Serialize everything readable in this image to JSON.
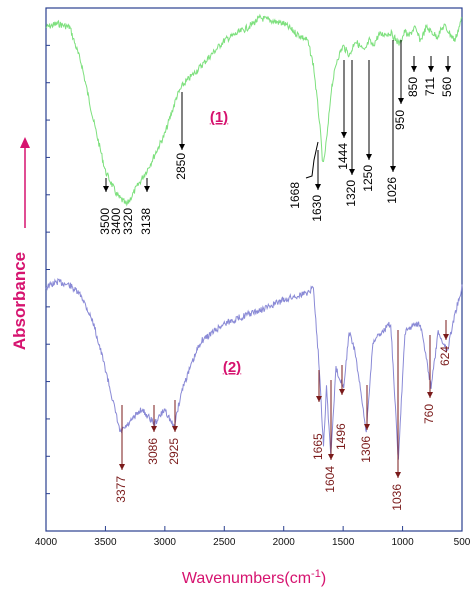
{
  "colors": {
    "spectrum_1": "#7ee07e",
    "spectrum_2": "#8a8ad6",
    "label_1": "#000000",
    "label_2": "#7a1a1a",
    "accent": "#d6136f",
    "frame": "#2a3f8f"
  },
  "chart_data": {
    "type": "line",
    "xlabel": "Wavenumbers(cm",
    "xlabel_sup": "-1",
    "xlabel_close": ")",
    "ylabel": "Absorbance",
    "xlim": [
      4000,
      500
    ],
    "x_reversed": true,
    "x_ticks": [
      "4000",
      "3500",
      "3000",
      "2500",
      "2000",
      "1500",
      "1000",
      "500"
    ],
    "grid": false,
    "series": [
      {
        "name": "(1)",
        "profile": [
          [
            4000,
            0.05
          ],
          [
            3900,
            0.03
          ],
          [
            3800,
            0.05
          ],
          [
            3700,
            0.25
          ],
          [
            3600,
            0.55
          ],
          [
            3500,
            0.82
          ],
          [
            3400,
            0.95
          ],
          [
            3320,
            1.0
          ],
          [
            3250,
            0.92
          ],
          [
            3138,
            0.8
          ],
          [
            3000,
            0.62
          ],
          [
            2900,
            0.42
          ],
          [
            2850,
            0.36
          ],
          [
            2700,
            0.26
          ],
          [
            2500,
            0.12
          ],
          [
            2300,
            0.05
          ],
          [
            2200,
            0.0
          ],
          [
            2000,
            0.03
          ],
          [
            1900,
            0.08
          ],
          [
            1800,
            0.12
          ],
          [
            1750,
            0.25
          ],
          [
            1700,
            0.55
          ],
          [
            1668,
            0.8
          ],
          [
            1630,
            0.6
          ],
          [
            1600,
            0.38
          ],
          [
            1550,
            0.22
          ],
          [
            1500,
            0.15
          ],
          [
            1444,
            0.2
          ],
          [
            1400,
            0.12
          ],
          [
            1320,
            0.18
          ],
          [
            1280,
            0.12
          ],
          [
            1250,
            0.15
          ],
          [
            1200,
            0.09
          ],
          [
            1100,
            0.08
          ],
          [
            1026,
            0.14
          ],
          [
            980,
            0.07
          ],
          [
            950,
            0.1
          ],
          [
            900,
            0.05
          ],
          [
            850,
            0.12
          ],
          [
            800,
            0.05
          ],
          [
            711,
            0.1
          ],
          [
            650,
            0.04
          ],
          [
            560,
            0.12
          ],
          [
            500,
            0.0
          ]
        ],
        "peaks": [
          "3500",
          "3400",
          "3320",
          "3138",
          "2850",
          "1668",
          "1630",
          "1444",
          "1320",
          "1250",
          "1026",
          "950",
          "850",
          "711",
          "560"
        ]
      },
      {
        "name": "(2)",
        "profile": [
          [
            4000,
            0.05
          ],
          [
            3900,
            0.02
          ],
          [
            3800,
            0.04
          ],
          [
            3700,
            0.1
          ],
          [
            3600,
            0.25
          ],
          [
            3500,
            0.5
          ],
          [
            3400,
            0.78
          ],
          [
            3377,
            0.85
          ],
          [
            3300,
            0.8
          ],
          [
            3200,
            0.72
          ],
          [
            3086,
            0.8
          ],
          [
            3000,
            0.72
          ],
          [
            2925,
            0.82
          ],
          [
            2850,
            0.6
          ],
          [
            2700,
            0.35
          ],
          [
            2500,
            0.25
          ],
          [
            2300,
            0.2
          ],
          [
            2200,
            0.18
          ],
          [
            2000,
            0.12
          ],
          [
            1900,
            0.1
          ],
          [
            1800,
            0.08
          ],
          [
            1750,
            0.05
          ],
          [
            1700,
            0.5
          ],
          [
            1665,
            0.92
          ],
          [
            1640,
            0.6
          ],
          [
            1604,
            0.98
          ],
          [
            1560,
            0.5
          ],
          [
            1496,
            0.6
          ],
          [
            1450,
            0.3
          ],
          [
            1400,
            0.4
          ],
          [
            1306,
            0.85
          ],
          [
            1250,
            0.35
          ],
          [
            1150,
            0.28
          ],
          [
            1100,
            0.25
          ],
          [
            1036,
            1.0
          ],
          [
            980,
            0.3
          ],
          [
            900,
            0.25
          ],
          [
            850,
            0.25
          ],
          [
            760,
            0.6
          ],
          [
            700,
            0.3
          ],
          [
            624,
            0.4
          ],
          [
            560,
            0.2
          ],
          [
            500,
            0.05
          ]
        ],
        "peaks": [
          "3377",
          "3086",
          "2925",
          "1665",
          "1604",
          "1496",
          "1306",
          "1036",
          "760",
          "624"
        ]
      }
    ]
  }
}
